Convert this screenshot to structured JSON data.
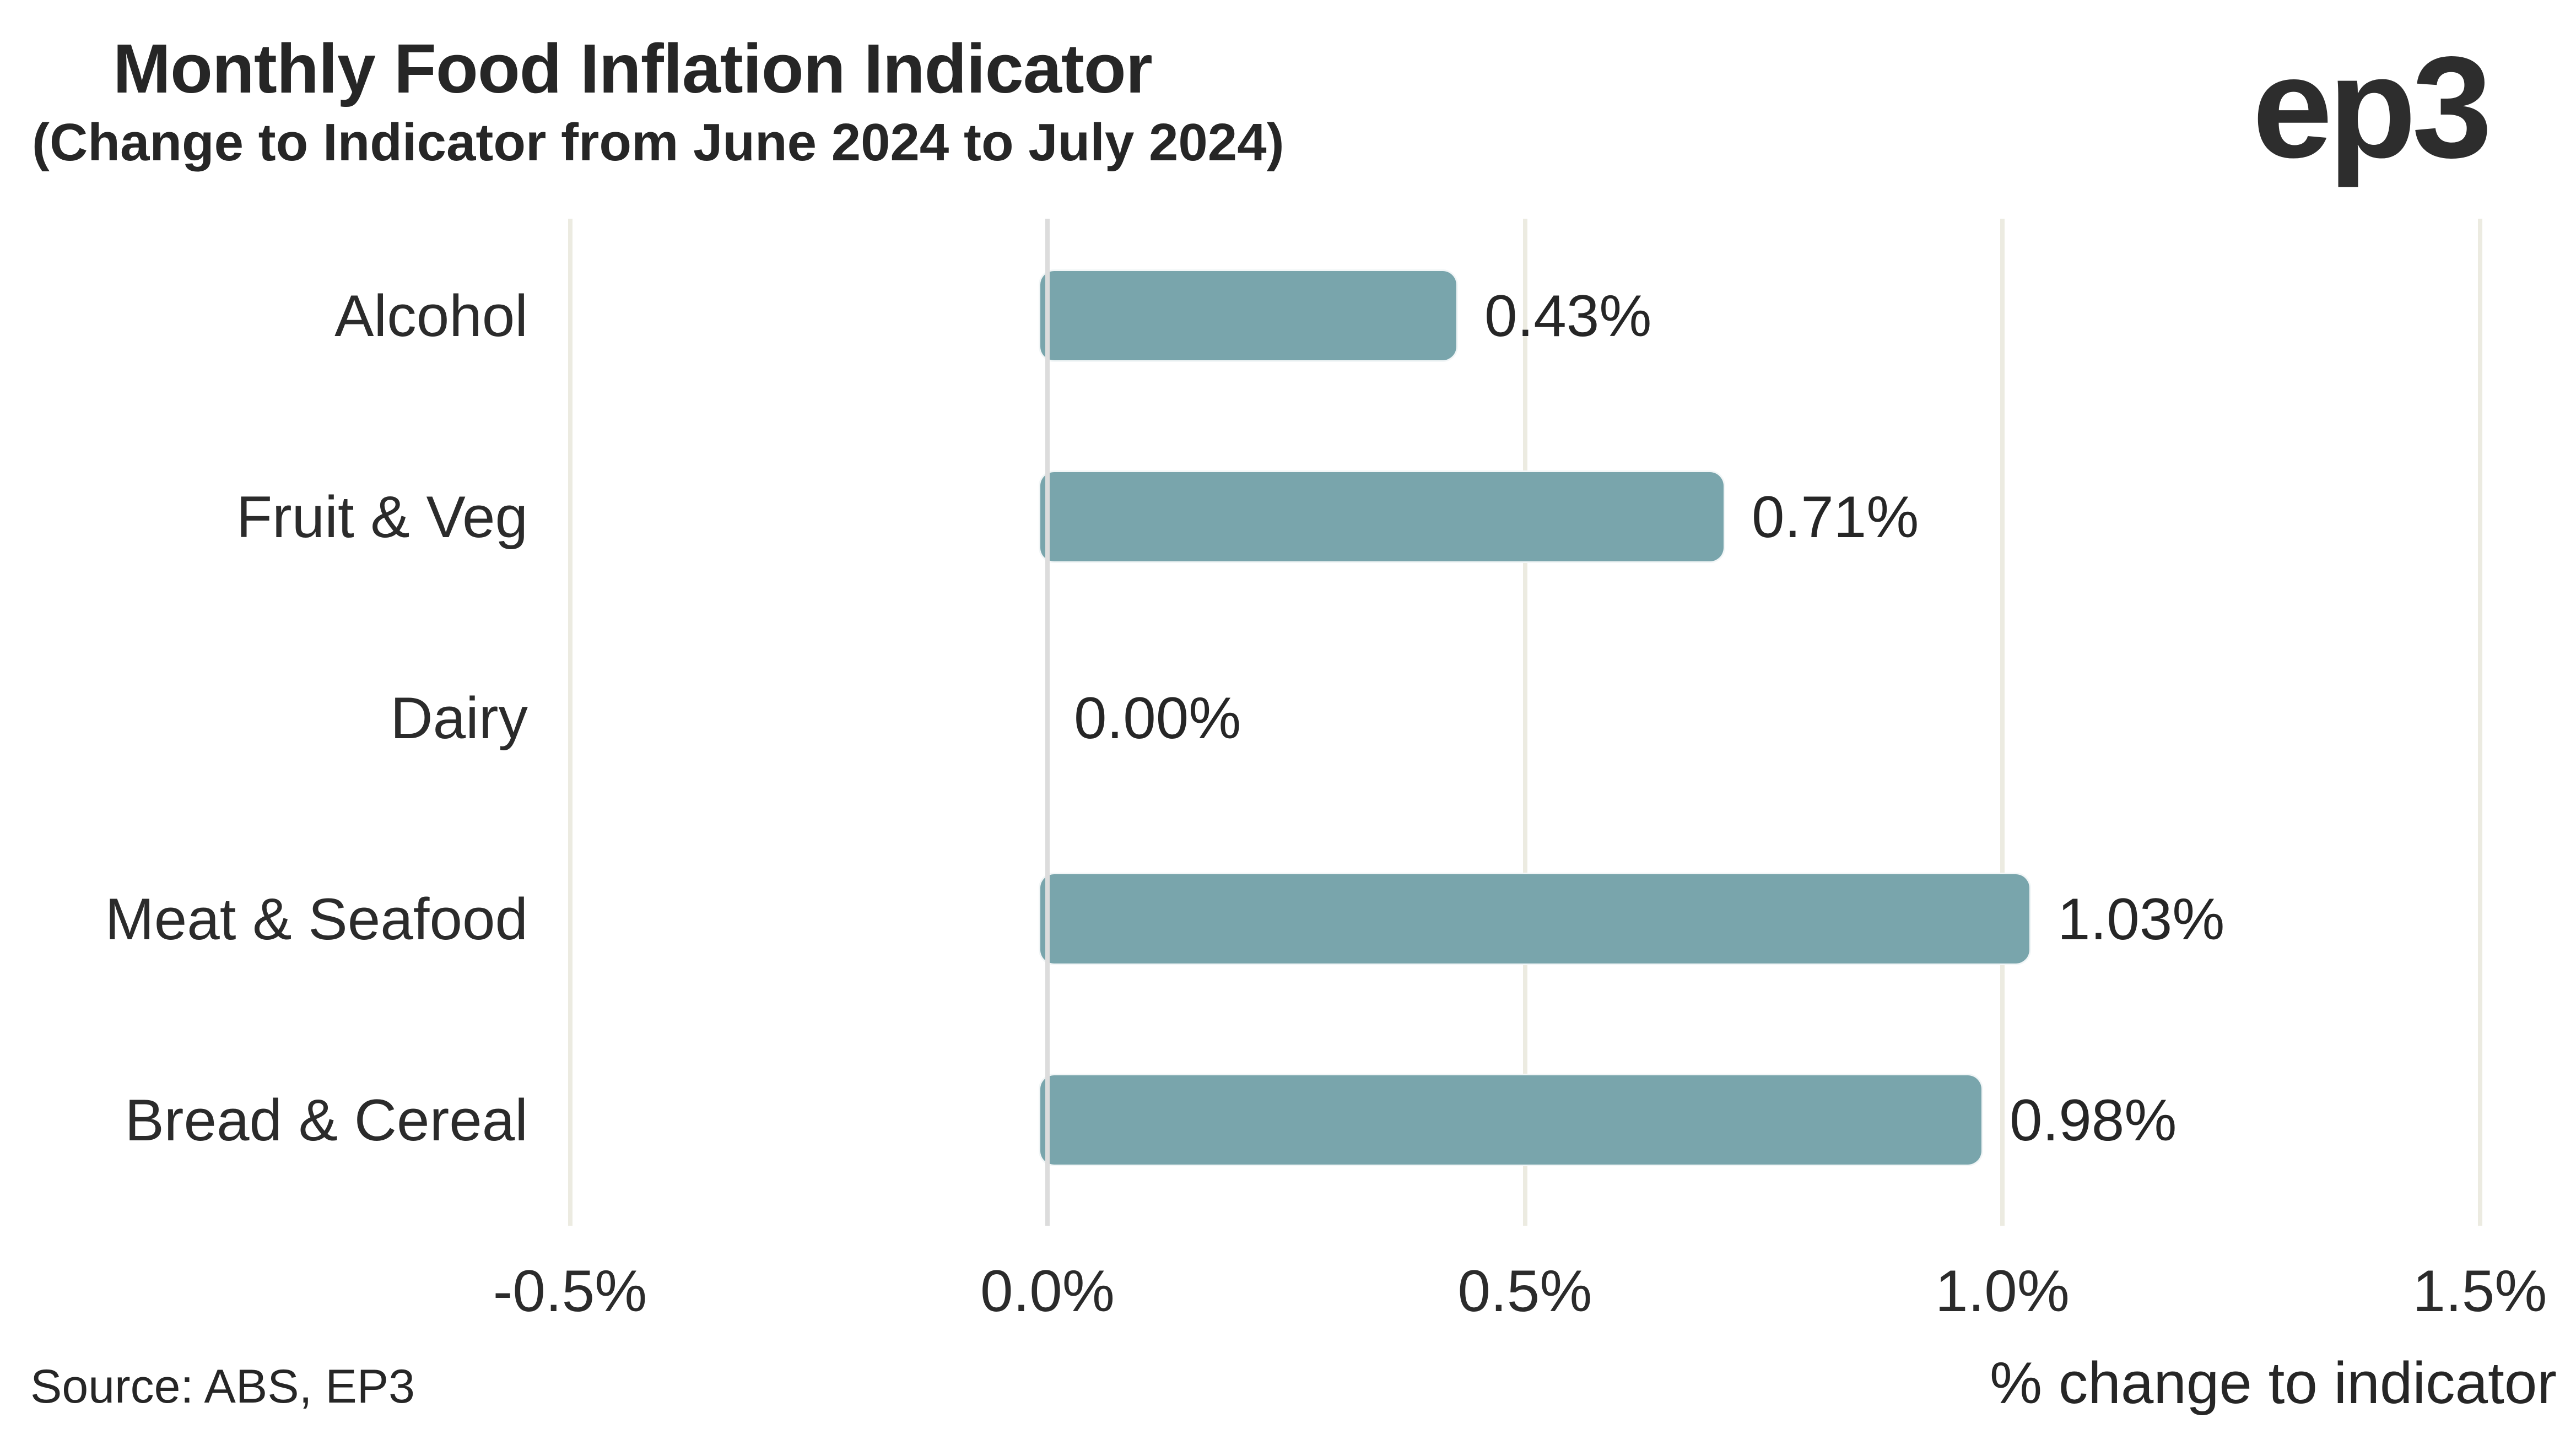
{
  "header": {
    "title": "Monthly Food Inflation Indicator",
    "subtitle": "(Change to Indicator from June 2024 to July 2024)",
    "logo": "ep3"
  },
  "axis": {
    "x_title": "% change to indicator"
  },
  "footer": {
    "source": "Source: ABS, EP3"
  },
  "colors": {
    "bar": "#79a5ac",
    "gridline": "#ecebe1",
    "zero_line": "#dcdcdc",
    "text": "#262626"
  },
  "chart_data": {
    "type": "bar",
    "orientation": "horizontal",
    "title": "Monthly Food Inflation Indicator",
    "subtitle": "(Change to Indicator from June 2024 to July 2024)",
    "categories": [
      "Alcohol",
      "Fruit & Veg",
      "Dairy",
      "Meat & Seafood",
      "Bread & Cereal"
    ],
    "values": [
      0.43,
      0.71,
      0.0,
      1.03,
      0.98
    ],
    "value_labels": [
      "0.43%",
      "0.71%",
      "0.00%",
      "1.03%",
      "0.98%"
    ],
    "xlabel": "% change to indicator",
    "x_ticks": [
      {
        "label": "-0.5%",
        "value": -0.5
      },
      {
        "label": "0.0%",
        "value": 0.0
      },
      {
        "label": "0.5%",
        "value": 0.5
      },
      {
        "label": "1.0%",
        "value": 1.0
      },
      {
        "label": "1.5%",
        "value": 1.5
      }
    ],
    "xlim": [
      -0.55,
      1.6
    ],
    "grid": "vertical",
    "legend": "none"
  }
}
